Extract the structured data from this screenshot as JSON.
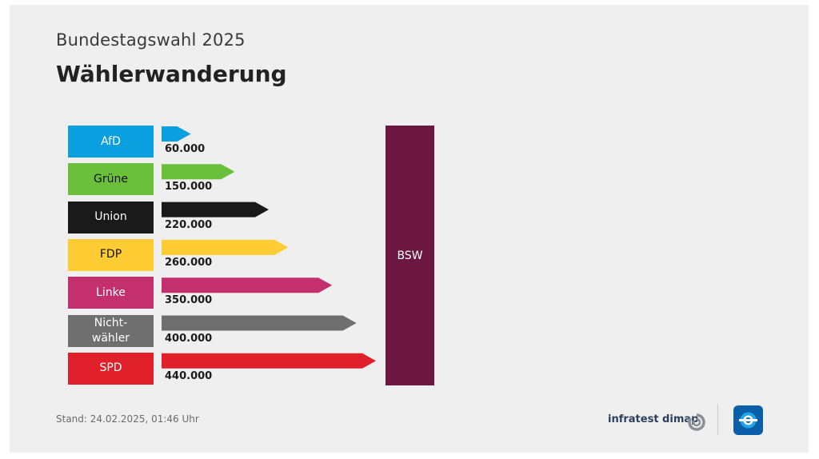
{
  "header": {
    "subtitle": "Bundestagswahl 2025",
    "title": "Wählerwanderung"
  },
  "chart_data": {
    "type": "bar",
    "title": "Wählerwanderung",
    "subtitle": "Bundestagswahl 2025",
    "target": {
      "label": "BSW",
      "color": "#6b1740"
    },
    "categories": [
      "AfD",
      "Grüne",
      "Union",
      "FDP",
      "Linke",
      "Nicht-\nwähler",
      "SPD"
    ],
    "values": [
      60000,
      150000,
      220000,
      260000,
      350000,
      400000,
      440000
    ],
    "value_labels": [
      "60.000",
      "150.000",
      "220.000",
      "260.000",
      "350.000",
      "400.000",
      "440.000"
    ],
    "colors": [
      "#0aa0e0",
      "#6abf3b",
      "#1a1a1a",
      "#ffcc33",
      "#c4306e",
      "#6f6f6f",
      "#e0202a"
    ],
    "label_text_colors": [
      "#ffffff",
      "#111111",
      "#ffffff",
      "#111111",
      "#ffffff",
      "#ffffff",
      "#ffffff"
    ],
    "xlim": [
      0,
      440000
    ]
  },
  "footer": {
    "stand": "Stand:  24.02.2025, 01:46 Uhr",
    "source": "infratest dimap"
  },
  "icons": {
    "infratest": "infratest-dimap-logo-icon",
    "ard": "tagesschau-logo-icon"
  }
}
